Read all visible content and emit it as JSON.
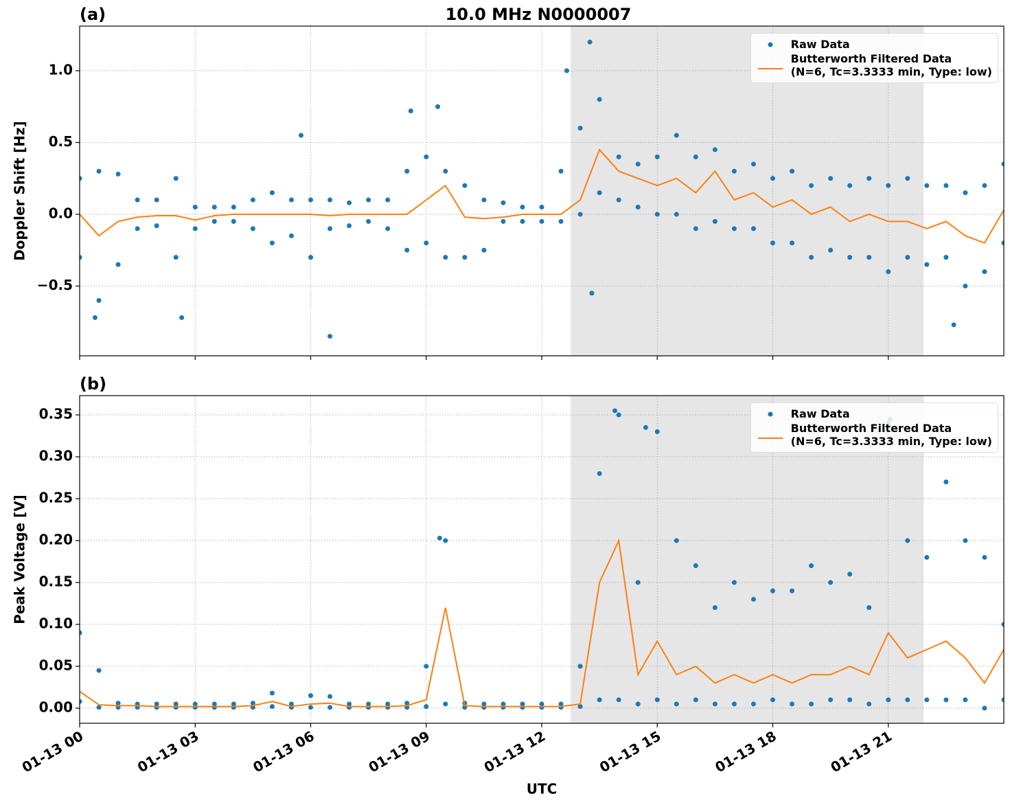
{
  "chart_data": [
    {
      "type": "scatter",
      "title": "10.0 MHz N0000007",
      "panel_label": "(a)",
      "ylabel": "Doppler Shift [Hz]",
      "xlim": [
        0,
        24
      ],
      "xticks": [
        0,
        3,
        6,
        9,
        12,
        15,
        18,
        21
      ],
      "ylim": [
        -0.986,
        1.311
      ],
      "yticks": [
        {
          "value": -0.5,
          "label": "−0.5"
        },
        {
          "value": 0,
          "label": "0.0"
        },
        0.5,
        {
          "value": 1,
          "label": "1.0"
        }
      ],
      "grid": true,
      "shaded_span": [
        12.75,
        21.92
      ],
      "legend": "upper right",
      "series": [
        {
          "name": "Raw Data",
          "type": "scatter",
          "color": "#1f77b4",
          "x": [
            0,
            0.5,
            1,
            1.5,
            2,
            2.5,
            3,
            3.5,
            4,
            4.5,
            5,
            5.5,
            6,
            6.5,
            7,
            7.5,
            8,
            8.5,
            9,
            9.5,
            10,
            10.5,
            11,
            11.5,
            12,
            12.5,
            13,
            13.5,
            14,
            14.5,
            15,
            15.5,
            16,
            16.5,
            17,
            17.5,
            18,
            18.5,
            19,
            19.5,
            20,
            20.5,
            21,
            21.5,
            22,
            22.5,
            23,
            23.5,
            24,
            0,
            0.5,
            1,
            1.5,
            2,
            2.5,
            3,
            3.5,
            4,
            4.5,
            5,
            5.5,
            6,
            6.5,
            7,
            7.5,
            8,
            8.5,
            9,
            9.5,
            10,
            10.5,
            11,
            11.5,
            12,
            12.5,
            13,
            13.5,
            14,
            14.5,
            15,
            15.5,
            16,
            16.5,
            17,
            17.5,
            18,
            18.5,
            19,
            19.5,
            20,
            20.5,
            21,
            21.5,
            22,
            22.5,
            23,
            23.5,
            24,
            13.25,
            12.65,
            0.4,
            2.65,
            6.5,
            9.3,
            8.6,
            5.75,
            22.7,
            13.3
          ],
          "values": [
            0.25,
            0.3,
            0.28,
            0.1,
            0.1,
            0.25,
            0.05,
            0.05,
            0.05,
            0.1,
            0.15,
            0.1,
            0.1,
            0.1,
            0.08,
            0.1,
            0.1,
            0.3,
            0.4,
            0.3,
            0.2,
            0.1,
            0.08,
            0.05,
            0.05,
            0.3,
            0.6,
            0.8,
            0.4,
            0.35,
            0.4,
            0.55,
            0.4,
            0.45,
            0.3,
            0.35,
            0.25,
            0.3,
            0.2,
            0.25,
            0.2,
            0.25,
            0.2,
            0.25,
            0.2,
            0.2,
            0.15,
            0.2,
            0.35,
            -0.3,
            -0.6,
            -0.35,
            -0.1,
            -0.08,
            -0.3,
            -0.1,
            -0.05,
            -0.05,
            -0.1,
            -0.2,
            -0.15,
            -0.3,
            -0.1,
            -0.08,
            -0.05,
            -0.1,
            -0.25,
            -0.2,
            -0.3,
            -0.3,
            -0.25,
            -0.05,
            -0.05,
            -0.05,
            -0.05,
            0.0,
            0.15,
            0.1,
            0.05,
            0.0,
            0.0,
            -0.1,
            -0.05,
            -0.1,
            -0.1,
            -0.2,
            -0.2,
            -0.3,
            -0.25,
            -0.3,
            -0.3,
            -0.4,
            -0.3,
            -0.35,
            -0.3,
            -0.5,
            -0.4,
            -0.2,
            1.2,
            1.0,
            -0.72,
            -0.72,
            -0.85,
            0.75,
            0.72,
            0.55,
            -0.77,
            -0.55
          ]
        },
        {
          "name": "Butterworth Filtered Data\n(N=6, Tc=3.3333 min, Type: low)",
          "type": "line",
          "color": "#ff7f0e",
          "x": [
            0,
            0.5,
            1,
            1.5,
            2,
            2.5,
            3,
            3.5,
            4,
            4.5,
            5,
            5.5,
            6,
            6.5,
            7,
            7.5,
            8,
            8.5,
            9,
            9.5,
            10,
            10.5,
            11,
            11.5,
            12,
            12.5,
            13,
            13.5,
            14,
            14.5,
            15,
            15.5,
            16,
            16.5,
            17,
            17.5,
            18,
            18.5,
            19,
            19.5,
            20,
            20.5,
            21,
            21.5,
            22,
            22.5,
            23,
            23.5,
            24
          ],
          "values": [
            0.0,
            -0.15,
            -0.05,
            -0.02,
            -0.01,
            -0.01,
            -0.04,
            -0.01,
            0.0,
            0.0,
            0.0,
            0.0,
            0.0,
            -0.01,
            0.0,
            0.0,
            0.0,
            0.0,
            0.1,
            0.2,
            -0.02,
            -0.03,
            -0.02,
            0.0,
            0.0,
            0.0,
            0.1,
            0.45,
            0.3,
            0.25,
            0.2,
            0.25,
            0.15,
            0.3,
            0.1,
            0.15,
            0.05,
            0.1,
            0.0,
            0.05,
            -0.05,
            0.0,
            -0.05,
            -0.05,
            -0.1,
            -0.05,
            -0.15,
            -0.2,
            0.03
          ]
        }
      ]
    },
    {
      "type": "scatter",
      "panel_label": "(b)",
      "ylabel": "Peak Voltage [V]",
      "xlabel": "UTC",
      "xlim": [
        0,
        24
      ],
      "xticks": [
        {
          "value": 0,
          "label": "01-13 00"
        },
        {
          "value": 3,
          "label": "01-13 03"
        },
        {
          "value": 6,
          "label": "01-13 06"
        },
        {
          "value": 9,
          "label": "01-13 09"
        },
        {
          "value": 12,
          "label": "01-13 12"
        },
        {
          "value": 15,
          "label": "01-13 15"
        },
        {
          "value": 18,
          "label": "01-13 18"
        },
        {
          "value": 21,
          "label": "01-13 21"
        }
      ],
      "ylim": [
        -0.018,
        0.373
      ],
      "yticks": [
        {
          "value": 0,
          "label": "0.00"
        },
        {
          "value": 0.05,
          "label": "0.05"
        },
        {
          "value": 0.1,
          "label": "0.10"
        },
        {
          "value": 0.15,
          "label": "0.15"
        },
        {
          "value": 0.2,
          "label": "0.20"
        },
        {
          "value": 0.25,
          "label": "0.25"
        },
        {
          "value": 0.3,
          "label": "0.30"
        },
        {
          "value": 0.35,
          "label": "0.35"
        }
      ],
      "grid": true,
      "shaded_span": [
        12.75,
        21.92
      ],
      "legend": "upper right",
      "series": [
        {
          "name": "Raw Data",
          "type": "scatter",
          "color": "#1f77b4",
          "x": [
            0,
            0.5,
            1,
            1.5,
            2,
            2.5,
            3,
            3.5,
            4,
            4.5,
            5,
            5.5,
            6,
            6.5,
            7,
            7.5,
            8,
            8.5,
            9,
            9.5,
            10,
            10.5,
            11,
            11.5,
            12,
            12.5,
            13,
            13.5,
            14,
            14.5,
            15,
            15.5,
            16,
            16.5,
            17,
            17.5,
            18,
            18.5,
            19,
            19.5,
            20,
            20.5,
            21,
            21.5,
            22,
            22.5,
            23,
            23.5,
            24,
            0,
            0.5,
            1,
            1.5,
            2,
            2.5,
            3,
            3.5,
            4,
            4.5,
            5,
            5.5,
            6,
            6.5,
            7,
            7.5,
            8,
            8.5,
            9,
            9.5,
            10,
            10.5,
            11,
            11.5,
            12,
            12.5,
            13,
            13.5,
            14,
            14.5,
            15,
            15.5,
            16,
            16.5,
            17,
            17.5,
            18,
            18.5,
            19,
            19.5,
            20,
            20.5,
            21,
            21.5,
            22,
            22.5,
            23,
            23.5,
            24,
            13.9,
            14.7,
            21.05,
            9.35
          ],
          "values": [
            0.09,
            0.045,
            0.006,
            0.005,
            0.005,
            0.005,
            0.005,
            0.005,
            0.005,
            0.006,
            0.018,
            0.005,
            0.015,
            0.014,
            0.005,
            0.005,
            0.005,
            0.006,
            0.05,
            0.2,
            0.006,
            0.005,
            0.005,
            0.005,
            0.005,
            0.005,
            0.05,
            0.28,
            0.35,
            0.15,
            0.33,
            0.2,
            0.17,
            0.12,
            0.15,
            0.13,
            0.14,
            0.14,
            0.17,
            0.15,
            0.16,
            0.12,
            0.34,
            0.2,
            0.18,
            0.27,
            0.2,
            0.18,
            0.1,
            0.008,
            0.001,
            0.001,
            0.001,
            0.001,
            0.001,
            0.001,
            0.001,
            0.001,
            0.001,
            0.002,
            0.001,
            0.001,
            0.001,
            0.001,
            0.001,
            0.001,
            0.001,
            0.002,
            0.005,
            0.001,
            0.001,
            0.001,
            0.001,
            0.001,
            0.001,
            0.002,
            0.01,
            0.01,
            0.005,
            0.01,
            0.005,
            0.01,
            0.005,
            0.005,
            0.005,
            0.01,
            0.005,
            0.005,
            0.01,
            0.01,
            0.005,
            0.01,
            0.01,
            0.01,
            0.01,
            0.01,
            0.0,
            0.01,
            0.355,
            0.335,
            0.345,
            0.203
          ]
        },
        {
          "name": "Butterworth Filtered Data\n(N=6, Tc=3.3333 min, Type: low)",
          "type": "line",
          "color": "#ff7f0e",
          "x": [
            0,
            0.5,
            1,
            1.5,
            2,
            2.5,
            3,
            3.5,
            4,
            4.5,
            5,
            5.5,
            6,
            6.5,
            7,
            7.5,
            8,
            8.5,
            9,
            9.5,
            10,
            10.5,
            11,
            11.5,
            12,
            12.5,
            13,
            13.5,
            14,
            14.5,
            15,
            15.5,
            16,
            16.5,
            17,
            17.5,
            18,
            18.5,
            19,
            19.5,
            20,
            20.5,
            21,
            21.5,
            22,
            22.5,
            23,
            23.5,
            24
          ],
          "values": [
            0.02,
            0.004,
            0.003,
            0.003,
            0.002,
            0.002,
            0.002,
            0.002,
            0.002,
            0.003,
            0.008,
            0.002,
            0.005,
            0.006,
            0.002,
            0.002,
            0.002,
            0.003,
            0.01,
            0.12,
            0.003,
            0.002,
            0.002,
            0.002,
            0.002,
            0.002,
            0.005,
            0.15,
            0.2,
            0.04,
            0.08,
            0.04,
            0.05,
            0.03,
            0.04,
            0.03,
            0.04,
            0.03,
            0.04,
            0.04,
            0.05,
            0.04,
            0.09,
            0.06,
            0.07,
            0.08,
            0.06,
            0.03,
            0.07
          ]
        }
      ]
    }
  ]
}
